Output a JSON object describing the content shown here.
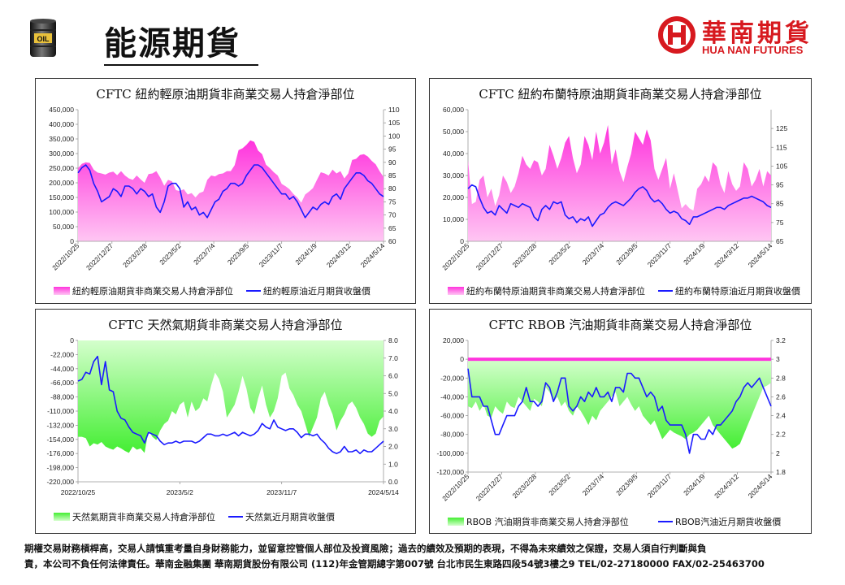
{
  "header": {
    "title": "能源期貨",
    "barrel_label": "OIL"
  },
  "logo": {
    "zh": "華南期貨",
    "en": "HUA NAN FUTURES"
  },
  "footer": {
    "line1": "期權交易財務槓桿高，交易人請慎重考量自身財務能力，並留意控管個人部位及投資風險；過去的績效及預期的表現，不得為未來績效之保證，交易人須自行判斷與負",
    "line2": "責，本公司不負任何法律責任。華南金融集團  華南期貨股份有限公司 (112)年金管期總字第007號  台北市民生東路四段54號3樓之9  TEL/02-27180000 FAX/02-25463700"
  },
  "colors": {
    "magenta": "#ff33dd",
    "magenta_light": "#ffc6f3",
    "green": "#44ee33",
    "green_light": "#d4ffcc",
    "line": "#1a1aff",
    "brand": "#d7191f"
  },
  "chart_data": [
    {
      "id": "wti",
      "type": "area",
      "title": "CFTC 紐約輕原油期貨非商業交易人持倉淨部位",
      "x_labels": [
        "2022/10/25",
        "2022/12/27",
        "2023/2/28",
        "2023/5/2",
        "2023/7/4",
        "2023/9/5",
        "2023/11/7",
        "2024/1/9",
        "2024/3/12",
        "2024/5/14"
      ],
      "y_left": {
        "min": 0,
        "max": 450000,
        "ticks": [
          "0",
          "50,000",
          "100,000",
          "150,000",
          "200,000",
          "250,000",
          "300,000",
          "350,000",
          "400,000",
          "450,000"
        ]
      },
      "y_right": {
        "min": 60,
        "max": 110,
        "ticks": [
          "60",
          "65",
          "70",
          "75",
          "80",
          "85",
          "90",
          "95",
          "100",
          "105",
          "110"
        ]
      },
      "series": [
        {
          "name": "紐約輕原油期貨非商業交易人持倉淨部位",
          "axis": "left",
          "kind": "area",
          "values": [
            250000,
            265000,
            270000,
            268000,
            245000,
            235000,
            232000,
            228000,
            235000,
            238000,
            226000,
            240000,
            225000,
            215000,
            210000,
            225000,
            212000,
            200000,
            230000,
            232000,
            240000,
            218000,
            190000,
            210000,
            205000,
            175000,
            172000,
            178000,
            160000,
            165000,
            150000,
            165000,
            170000,
            210000,
            225000,
            222000,
            230000,
            232000,
            240000,
            240000,
            260000,
            312000,
            318000,
            330000,
            345000,
            340000,
            310000,
            298000,
            262000,
            250000,
            236000,
            225000,
            196000,
            188000,
            178000,
            162000,
            150000,
            132000,
            160000,
            170000,
            182000,
            210000,
            236000,
            232000,
            225000,
            245000,
            232000,
            240000,
            215000,
            232000,
            278000,
            282000,
            295000,
            298000,
            290000,
            275000,
            263000,
            240000,
            220000
          ]
        },
        {
          "name": "紐約輕原油近月期貨收盤價",
          "axis": "right",
          "kind": "line",
          "values": [
            86,
            88,
            89,
            87,
            82,
            79,
            75,
            76,
            77,
            80,
            79,
            77,
            81,
            81,
            80,
            78,
            80,
            79,
            77,
            78,
            73,
            71,
            75,
            81,
            82,
            82,
            80,
            73,
            75,
            72,
            73,
            70,
            71,
            69,
            72,
            75,
            76,
            79,
            80,
            82,
            82,
            81,
            82,
            85,
            87,
            89,
            89,
            88,
            86,
            84,
            82,
            80,
            78,
            78,
            76,
            77,
            75,
            72,
            69,
            71,
            73,
            72,
            74,
            75,
            74,
            77,
            78,
            76,
            80,
            82,
            84,
            86,
            86,
            85,
            83,
            82,
            80,
            78,
            77
          ]
        }
      ],
      "legend": [
        "紐約輕原油期貨非商業交易人持倉淨部位",
        "紐約輕原油近月期貨收盤價"
      ]
    },
    {
      "id": "brent",
      "type": "area",
      "title": "CFTC 紐約布蘭特原油期貨非商業交易人持倉淨部位",
      "x_labels": [
        "2022/10/25",
        "2022/12/27",
        "2023/2/28",
        "2023/5/2",
        "2023/7/4",
        "2023/9/5",
        "2023/11/7",
        "2024/1/9",
        "2024/3/12",
        "2024/5/14"
      ],
      "y_left": {
        "min": 0,
        "max": 60000,
        "ticks": [
          "0",
          "10,000",
          "20,000",
          "30,000",
          "40,000",
          "50,000",
          "60,000"
        ]
      },
      "y_right": {
        "min": 65,
        "max": 135,
        "ticks": [
          "65",
          "75",
          "85",
          "95",
          "105",
          "115",
          "125"
        ]
      },
      "series": [
        {
          "name": "紐約布蘭特原油期貨非商業交易人持倉淨部位",
          "axis": "left",
          "kind": "area",
          "values": [
            37000,
            17000,
            18000,
            28000,
            30000,
            20000,
            24000,
            16000,
            21000,
            30000,
            27000,
            22000,
            25000,
            31000,
            39000,
            35000,
            33000,
            37000,
            36000,
            30000,
            33000,
            44000,
            39000,
            33000,
            38000,
            45000,
            48000,
            38000,
            31000,
            35000,
            48000,
            44000,
            37000,
            50000,
            40000,
            45000,
            53000,
            35000,
            42000,
            32000,
            27000,
            34000,
            40000,
            50000,
            47000,
            44000,
            51000,
            46000,
            33000,
            28000,
            33000,
            38000,
            24000,
            31000,
            23000,
            15000,
            17000,
            15000,
            14000,
            24000,
            26000,
            30000,
            27000,
            36000,
            34000,
            26000,
            22000,
            32000,
            26000,
            23000,
            25000,
            36000,
            33000,
            25000,
            28000,
            33000,
            25000,
            32000,
            30000
          ]
        },
        {
          "name": "紐約布蘭特原油近月期貨收盤價",
          "axis": "right",
          "kind": "line",
          "values": [
            93,
            95,
            94,
            88,
            83,
            80,
            81,
            79,
            84,
            82,
            80,
            85,
            84,
            83,
            85,
            84,
            83,
            78,
            76,
            82,
            84,
            82,
            86,
            85,
            86,
            79,
            77,
            78,
            75,
            77,
            76,
            78,
            73,
            76,
            79,
            80,
            83,
            85,
            86,
            85,
            84,
            86,
            88,
            91,
            93,
            94,
            92,
            88,
            86,
            87,
            85,
            82,
            80,
            81,
            80,
            77,
            76,
            74,
            78,
            78,
            79,
            80,
            81,
            82,
            83,
            83,
            82,
            84,
            85,
            86,
            87,
            88,
            88,
            89,
            88,
            87,
            86,
            84,
            83
          ]
        }
      ],
      "legend": [
        "紐約布蘭特原油期貨非商業交易人持倉淨部位",
        "紐約布蘭特原油近月期貨收盤價"
      ]
    },
    {
      "id": "natgas",
      "type": "area",
      "title": "CFTC 天然氣期貨非商業交易人持倉淨部位",
      "x_labels": [
        "2022/10/25",
        "2023/5/2",
        "2023/11/7",
        "2024/5/14"
      ],
      "y_left": {
        "min": -220000,
        "max": 0,
        "ticks": [
          "0",
          "-22,000",
          "-44,000",
          "-66,000",
          "-88,000",
          "-110,000",
          "-132,000",
          "-154,000",
          "-176,000",
          "-198,000",
          "-220,000"
        ]
      },
      "y_right": {
        "min": 0,
        "max": 8,
        "ticks": [
          "0.0",
          "1.0",
          "2.0",
          "3.0",
          "4.0",
          "5.0",
          "6.0",
          "7.0",
          "8.0"
        ]
      },
      "series": [
        {
          "name": "天然氣期貨非商業交易人持倉淨部位",
          "axis": "left",
          "kind": "area",
          "values": [
            -150000,
            -150000,
            -152000,
            -165000,
            -160000,
            -162000,
            -158000,
            -165000,
            -168000,
            -170000,
            -165000,
            -168000,
            -172000,
            -175000,
            -165000,
            -170000,
            -168000,
            -175000,
            -140000,
            -150000,
            -155000,
            -140000,
            -130000,
            -125000,
            -110000,
            -115000,
            -100000,
            -95000,
            -120000,
            -95000,
            -110000,
            -105000,
            -90000,
            -95000,
            -70000,
            -50000,
            -60000,
            -80000,
            -120000,
            -110000,
            -100000,
            -80000,
            -55000,
            -75000,
            -105000,
            -115000,
            -90000,
            -70000,
            -100000,
            -120000,
            -110000,
            -90000,
            -55000,
            -50000,
            -75000,
            -85000,
            -100000,
            -110000,
            -130000,
            -150000,
            -135000,
            -120000,
            -90000,
            -80000,
            -100000,
            -115000,
            -140000,
            -125000,
            -115000,
            -100000,
            -95000,
            -105000,
            -120000,
            -130000,
            -145000,
            -150000,
            -145000,
            -125000,
            -118000
          ]
        },
        {
          "name": "天然氣近月期貨收盤價",
          "axis": "right",
          "kind": "line",
          "values": [
            5.7,
            5.8,
            6.2,
            6.1,
            6.8,
            7.1,
            5.5,
            6.8,
            5.2,
            5.1,
            4.0,
            3.6,
            3.5,
            3.1,
            2.8,
            2.7,
            2.6,
            2.2,
            2.8,
            2.7,
            2.6,
            2.3,
            2.1,
            2.2,
            2.2,
            2.3,
            2.2,
            2.3,
            2.3,
            2.3,
            2.2,
            2.3,
            2.5,
            2.7,
            2.7,
            2.6,
            2.6,
            2.7,
            2.6,
            2.7,
            2.8,
            2.6,
            2.8,
            2.7,
            2.6,
            2.7,
            2.9,
            3.3,
            3.1,
            3.0,
            3.5,
            3.1,
            3.0,
            2.9,
            3.0,
            3.0,
            2.8,
            2.5,
            2.7,
            2.7,
            2.6,
            2.7,
            2.4,
            2.2,
            1.9,
            1.7,
            1.6,
            1.7,
            2.0,
            1.7,
            1.7,
            1.8,
            1.6,
            1.8,
            1.7,
            1.7,
            1.9,
            2.1,
            2.3
          ]
        }
      ],
      "legend": [
        "天然氣期貨非商業交易人持倉淨部位",
        "天然氣近月期貨收盤價"
      ]
    },
    {
      "id": "rbob",
      "type": "area",
      "title": "CFTC RBOB 汽油期貨非商業交易人持倉淨部位",
      "x_labels": [
        "2022/10/25",
        "2022/12/27",
        "2023/2/28",
        "2023/5/2",
        "2023/7/4",
        "2023/9/5",
        "2023/11/7",
        "2024/1/9",
        "2024/3/12",
        "2024/5/14"
      ],
      "y_left": {
        "min": -120000,
        "max": 20000,
        "ticks": [
          "-120,000",
          "-100,000",
          "-80,000",
          "-60,000",
          "-40,000",
          "-20,000",
          "0",
          "20,000"
        ]
      },
      "y_right": {
        "min": 1.8,
        "max": 3.2,
        "ticks": [
          "1.8",
          "2",
          "2.2",
          "2.4",
          "2.6",
          "2.8",
          "3",
          "3.2"
        ]
      },
      "series": [
        {
          "name": "RBOB 汽油期貨非商業交易人持倉淨部位",
          "axis": "left",
          "kind": "area",
          "values": [
            -50000,
            -52000,
            -45000,
            -55000,
            -48000,
            -60000,
            -62000,
            -50000,
            -55000,
            -58000,
            -45000,
            -50000,
            -52000,
            -40000,
            -45000,
            -50000,
            -55000,
            -42000,
            -45000,
            -50000,
            -30000,
            -35000,
            -45000,
            -40000,
            -50000,
            -45000,
            -55000,
            -60000,
            -50000,
            -55000,
            -62000,
            -70000,
            -60000,
            -65000,
            -55000,
            -50000,
            -45000,
            -40000,
            -35000,
            -50000,
            -45000,
            -40000,
            -48000,
            -55000,
            -50000,
            -60000,
            -65000,
            -70000,
            -65000,
            -75000,
            -85000,
            -80000,
            -75000,
            -78000,
            -80000,
            -82000,
            -85000,
            -80000,
            -78000,
            -75000,
            -70000,
            -65000,
            -60000,
            -70000,
            -75000,
            -80000,
            -85000,
            -90000,
            -95000,
            -93000,
            -90000,
            -80000,
            -70000,
            -60000,
            -50000,
            -40000,
            -30000,
            -28000,
            -25000
          ]
        },
        {
          "name": "RBOB汽油近月期貨收盤價",
          "axis": "right",
          "kind": "line",
          "values": [
            2.9,
            2.6,
            2.6,
            2.6,
            2.5,
            2.5,
            2.35,
            2.2,
            2.2,
            2.3,
            2.4,
            2.4,
            2.4,
            2.5,
            2.55,
            2.7,
            2.55,
            2.55,
            2.5,
            2.55,
            2.75,
            2.7,
            2.55,
            2.65,
            2.8,
            2.8,
            2.5,
            2.45,
            2.5,
            2.6,
            2.55,
            2.65,
            2.6,
            2.7,
            2.6,
            2.6,
            2.65,
            2.55,
            2.7,
            2.7,
            2.65,
            2.85,
            2.85,
            2.8,
            2.8,
            2.7,
            2.6,
            2.65,
            2.6,
            2.45,
            2.5,
            2.35,
            2.3,
            2.3,
            2.3,
            2.3,
            2.2,
            2.0,
            2.2,
            2.2,
            2.15,
            2.15,
            2.25,
            2.2,
            2.3,
            2.3,
            2.35,
            2.4,
            2.45,
            2.55,
            2.6,
            2.7,
            2.75,
            2.7,
            2.75,
            2.8,
            2.7,
            2.6,
            2.5
          ]
        }
      ],
      "legend": [
        "RBOB 汽油期貨非商業交易人持倉淨部位",
        "RBOB汽油近月期貨收盤價"
      ]
    }
  ]
}
